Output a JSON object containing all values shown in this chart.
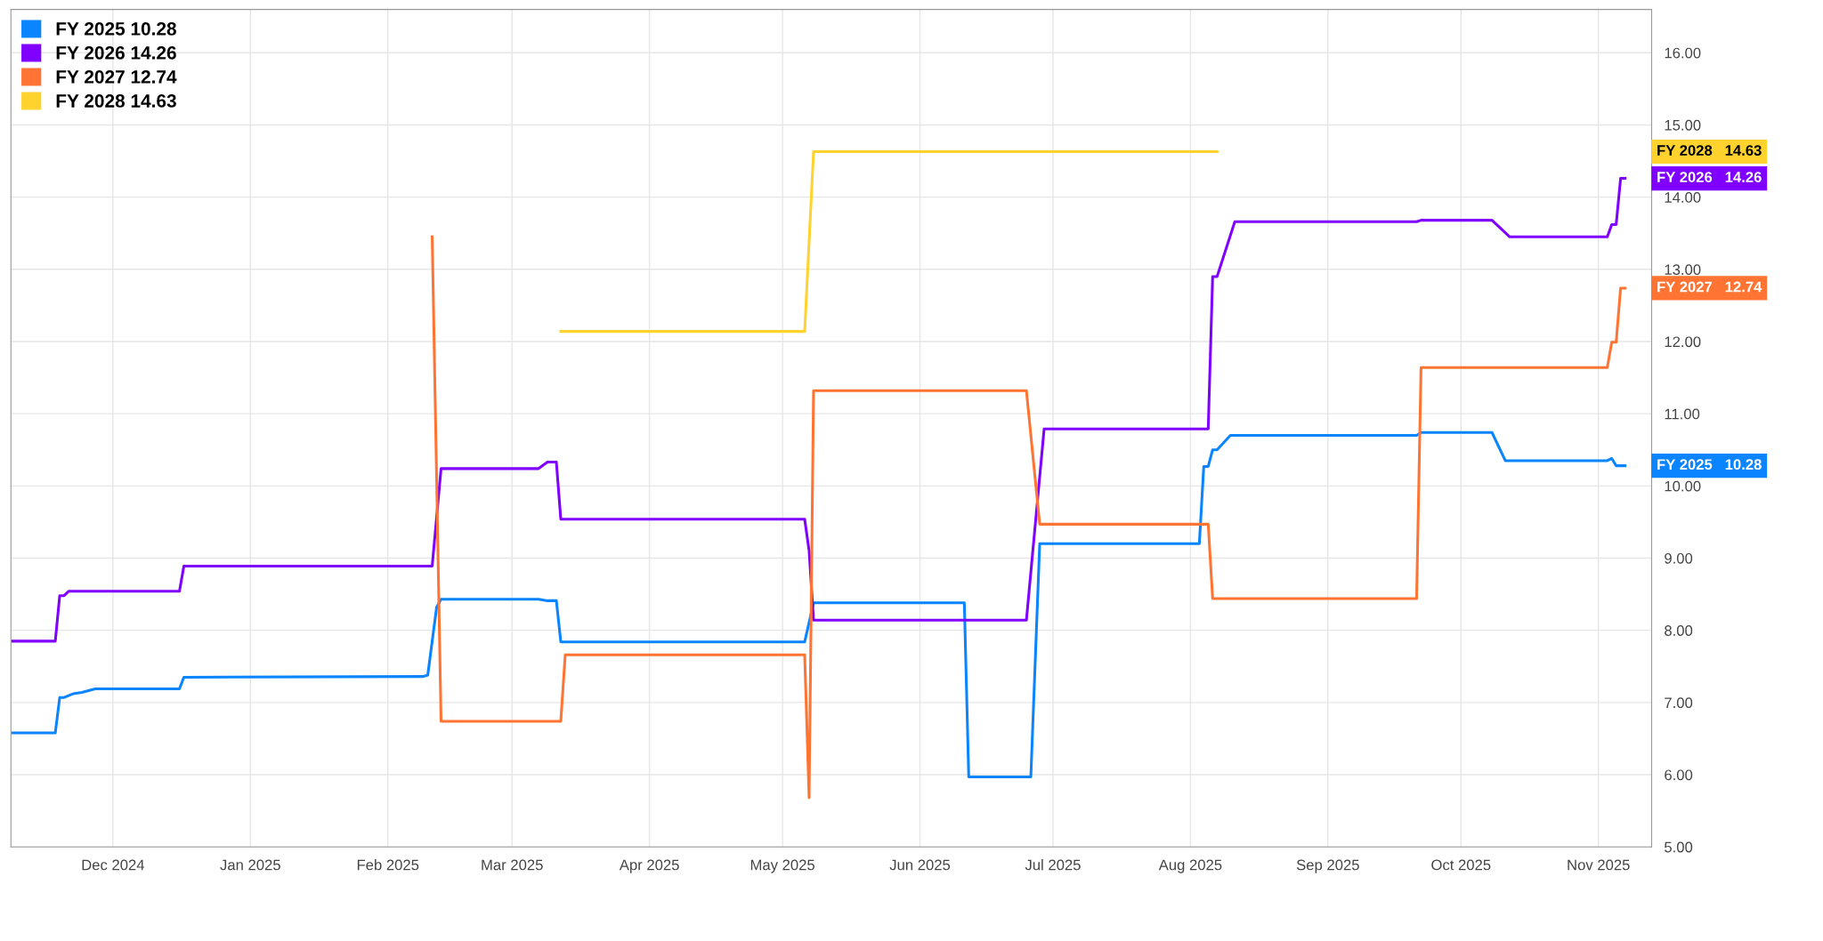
{
  "chart_data": {
    "type": "line",
    "xlim": [
      "2024-11-08",
      "2025-11-13"
    ],
    "ylim": [
      5.0,
      16.6
    ],
    "yticks": [
      {
        "value": 5,
        "label": "5.00"
      },
      {
        "value": 6,
        "label": "6.00"
      },
      {
        "value": 7,
        "label": "7.00"
      },
      {
        "value": 8,
        "label": "8.00"
      },
      {
        "value": 9,
        "label": "9.00"
      },
      {
        "value": 10,
        "label": "10.00"
      },
      {
        "value": 11,
        "label": "11.00"
      },
      {
        "value": 12,
        "label": "12.00"
      },
      {
        "value": 13,
        "label": "13.00"
      },
      {
        "value": 14,
        "label": "14.00"
      },
      {
        "value": 15,
        "label": "15.00"
      },
      {
        "value": 16,
        "label": "16.00"
      }
    ],
    "xticks": [
      {
        "value": "2024-12-01",
        "label": "Dec 2024"
      },
      {
        "value": "2025-01-01",
        "label": "Jan 2025"
      },
      {
        "value": "2025-02-01",
        "label": "Feb 2025"
      },
      {
        "value": "2025-03-01",
        "label": "Mar 2025"
      },
      {
        "value": "2025-04-01",
        "label": "Apr 2025"
      },
      {
        "value": "2025-05-01",
        "label": "May 2025"
      },
      {
        "value": "2025-06-01",
        "label": "Jun 2025"
      },
      {
        "value": "2025-07-01",
        "label": "Jul 2025"
      },
      {
        "value": "2025-08-01",
        "label": "Aug 2025"
      },
      {
        "value": "2025-09-01",
        "label": "Sep 2025"
      },
      {
        "value": "2025-10-01",
        "label": "Oct 2025"
      },
      {
        "value": "2025-11-01",
        "label": "Nov 2025"
      }
    ],
    "grid": true,
    "legend": "top left",
    "marker": "none",
    "line_style": "solid",
    "series": [
      {
        "name": "FY 2025 10.28",
        "color": "#0a84ff",
        "x": [
          "2024-11-08",
          "2024-11-18",
          "2024-11-19",
          "2024-11-20",
          "2024-11-22",
          "2024-11-24",
          "2024-11-27",
          "2024-12-16",
          "2024-12-17",
          "2025-02-09",
          "2025-02-10",
          "2025-02-12",
          "2025-02-13",
          "2025-03-07",
          "2025-03-09",
          "2025-03-11",
          "2025-03-12",
          "2025-05-06",
          "2025-05-08",
          "2025-06-11",
          "2025-06-12",
          "2025-06-26",
          "2025-06-28",
          "2025-08-03",
          "2025-08-04",
          "2025-08-05",
          "2025-08-06",
          "2025-08-07",
          "2025-08-10",
          "2025-09-21",
          "2025-09-22",
          "2025-10-08",
          "2025-10-11",
          "2025-11-03",
          "2025-11-04",
          "2025-11-05",
          "2025-11-07"
        ],
        "values": [
          6.58,
          6.58,
          7.07,
          7.07,
          7.12,
          7.14,
          7.19,
          7.19,
          7.35,
          7.36,
          7.38,
          8.32,
          8.43,
          8.43,
          8.41,
          8.41,
          7.84,
          7.84,
          8.38,
          8.38,
          5.97,
          5.97,
          9.2,
          9.2,
          10.27,
          10.27,
          10.5,
          10.5,
          10.7,
          10.7,
          10.74,
          10.74,
          10.35,
          10.35,
          10.38,
          10.28,
          10.28
        ]
      },
      {
        "name": "FY 2026 14.26",
        "color": "#7f00ff",
        "x": [
          "2024-11-08",
          "2024-11-18",
          "2024-11-19",
          "2024-11-20",
          "2024-11-21",
          "2024-12-16",
          "2024-12-17",
          "2025-02-11",
          "2025-02-13",
          "2025-03-07",
          "2025-03-09",
          "2025-03-11",
          "2025-03-12",
          "2025-05-06",
          "2025-05-07",
          "2025-05-08",
          "2025-06-25",
          "2025-06-29",
          "2025-08-05",
          "2025-08-06",
          "2025-08-07",
          "2025-08-11",
          "2025-09-21",
          "2025-09-22",
          "2025-10-08",
          "2025-10-12",
          "2025-11-03",
          "2025-11-04",
          "2025-11-05",
          "2025-11-06",
          "2025-11-07"
        ],
        "values": [
          7.85,
          7.85,
          8.48,
          8.48,
          8.54,
          8.54,
          8.89,
          8.89,
          10.24,
          10.24,
          10.33,
          10.33,
          9.54,
          9.54,
          9.1,
          8.14,
          8.14,
          10.79,
          10.79,
          12.9,
          12.9,
          13.66,
          13.66,
          13.68,
          13.68,
          13.45,
          13.45,
          13.62,
          13.62,
          14.26,
          14.26
        ]
      },
      {
        "name": "FY 2027 12.74",
        "color": "#ff7433",
        "x": [
          "2025-02-11",
          "2025-02-13",
          "2025-03-12",
          "2025-03-13",
          "2025-05-06",
          "2025-05-07",
          "2025-05-08",
          "2025-06-25",
          "2025-06-28",
          "2025-08-05",
          "2025-08-06",
          "2025-09-21",
          "2025-09-22",
          "2025-11-03",
          "2025-11-04",
          "2025-11-05",
          "2025-11-06",
          "2025-11-07"
        ],
        "values": [
          13.45,
          6.74,
          6.74,
          7.66,
          7.66,
          5.68,
          11.32,
          11.32,
          9.47,
          9.47,
          8.44,
          8.44,
          11.64,
          11.64,
          11.99,
          11.99,
          12.74,
          12.74
        ]
      },
      {
        "name": "FY 2028 14.63",
        "color": "#ffd22e",
        "x": [
          "2025-03-12",
          "2025-05-06",
          "2025-05-08",
          "2025-08-07"
        ],
        "values": [
          12.14,
          12.14,
          14.63,
          14.63
        ]
      }
    ],
    "annotations": [
      "FY 2025   10.28",
      "FY 2026   14.26",
      "FY 2027   12.74",
      "FY 2028   14.63"
    ]
  }
}
